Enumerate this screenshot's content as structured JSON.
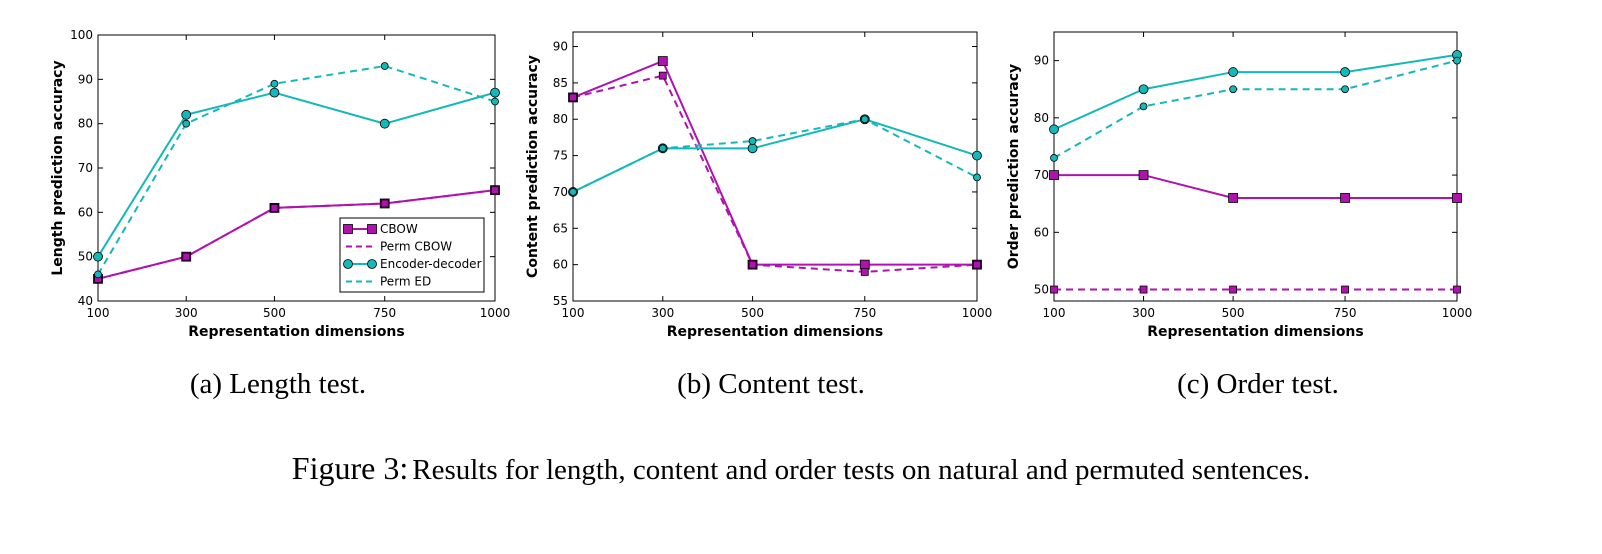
{
  "chart_data": [
    {
      "type": "line",
      "xlabel": "Representation dimensions",
      "ylabel": "Length prediction accuracy",
      "x": [
        100,
        300,
        500,
        750,
        1000
      ],
      "xticks": [
        "100",
        "300",
        "500",
        "750",
        "1000"
      ],
      "ylim": [
        40,
        100
      ],
      "yticks": [
        "40",
        "50",
        "60",
        "70",
        "80",
        "90",
        "100"
      ],
      "legend_position": "lower-right",
      "series": [
        {
          "name": "CBOW",
          "values": [
            45,
            50,
            61,
            62,
            65
          ],
          "color": "#b012b0",
          "dashed": false,
          "marker": "square"
        },
        {
          "name": "Perm CBOW",
          "values": [
            45,
            50,
            61,
            62,
            65
          ],
          "color": "#b012b0",
          "dashed": true,
          "marker": "square"
        },
        {
          "name": "Encoder-decoder",
          "values": [
            50,
            82,
            87,
            80,
            87
          ],
          "color": "#14b8b8",
          "dashed": false,
          "marker": "circle"
        },
        {
          "name": "Perm ED",
          "values": [
            46,
            80,
            89,
            93,
            85
          ],
          "color": "#14b8b8",
          "dashed": true,
          "marker": "circle"
        }
      ]
    },
    {
      "type": "line",
      "xlabel": "Representation dimensions",
      "ylabel": "Content prediction accuracy",
      "x": [
        100,
        300,
        500,
        750,
        1000
      ],
      "xticks": [
        "100",
        "300",
        "500",
        "750",
        "1000"
      ],
      "ylim": [
        55,
        92
      ],
      "yticks": [
        "55",
        "60",
        "65",
        "70",
        "75",
        "80",
        "85",
        "90"
      ],
      "series": [
        {
          "name": "CBOW",
          "values": [
            83,
            88,
            60,
            60,
            60
          ],
          "color": "#b012b0",
          "dashed": false,
          "marker": "square"
        },
        {
          "name": "Perm CBOW",
          "values": [
            83,
            86,
            60,
            59,
            60
          ],
          "color": "#b012b0",
          "dashed": true,
          "marker": "square"
        },
        {
          "name": "Encoder-decoder",
          "values": [
            70,
            76,
            76,
            80,
            75
          ],
          "color": "#14b8b8",
          "dashed": false,
          "marker": "circle"
        },
        {
          "name": "Perm ED",
          "values": [
            70,
            76,
            77,
            80,
            72
          ],
          "color": "#14b8b8",
          "dashed": true,
          "marker": "circle"
        }
      ]
    },
    {
      "type": "line",
      "xlabel": "Representation dimensions",
      "ylabel": "Order prediction accuracy",
      "x": [
        100,
        300,
        500,
        750,
        1000
      ],
      "xticks": [
        "100",
        "300",
        "500",
        "750",
        "1000"
      ],
      "ylim": [
        48,
        95
      ],
      "yticks": [
        "50",
        "60",
        "70",
        "80",
        "90"
      ],
      "series": [
        {
          "name": "CBOW",
          "values": [
            70,
            70,
            66,
            66,
            66
          ],
          "color": "#b012b0",
          "dashed": false,
          "marker": "square"
        },
        {
          "name": "Perm CBOW",
          "values": [
            50,
            50,
            50,
            50,
            50
          ],
          "color": "#b012b0",
          "dashed": true,
          "marker": "square"
        },
        {
          "name": "Encoder-decoder",
          "values": [
            78,
            85,
            88,
            88,
            91
          ],
          "color": "#14b8b8",
          "dashed": false,
          "marker": "circle"
        },
        {
          "name": "Perm ED",
          "values": [
            73,
            82,
            85,
            85,
            90
          ],
          "color": "#14b8b8",
          "dashed": true,
          "marker": "circle"
        }
      ]
    }
  ],
  "subcaptions": [
    "(a) Length test.",
    "(b) Content test.",
    "(c) Order test."
  ],
  "caption": {
    "label": "Figure 3:",
    "text": "Results for length, content and order tests on natural and permuted sentences."
  }
}
